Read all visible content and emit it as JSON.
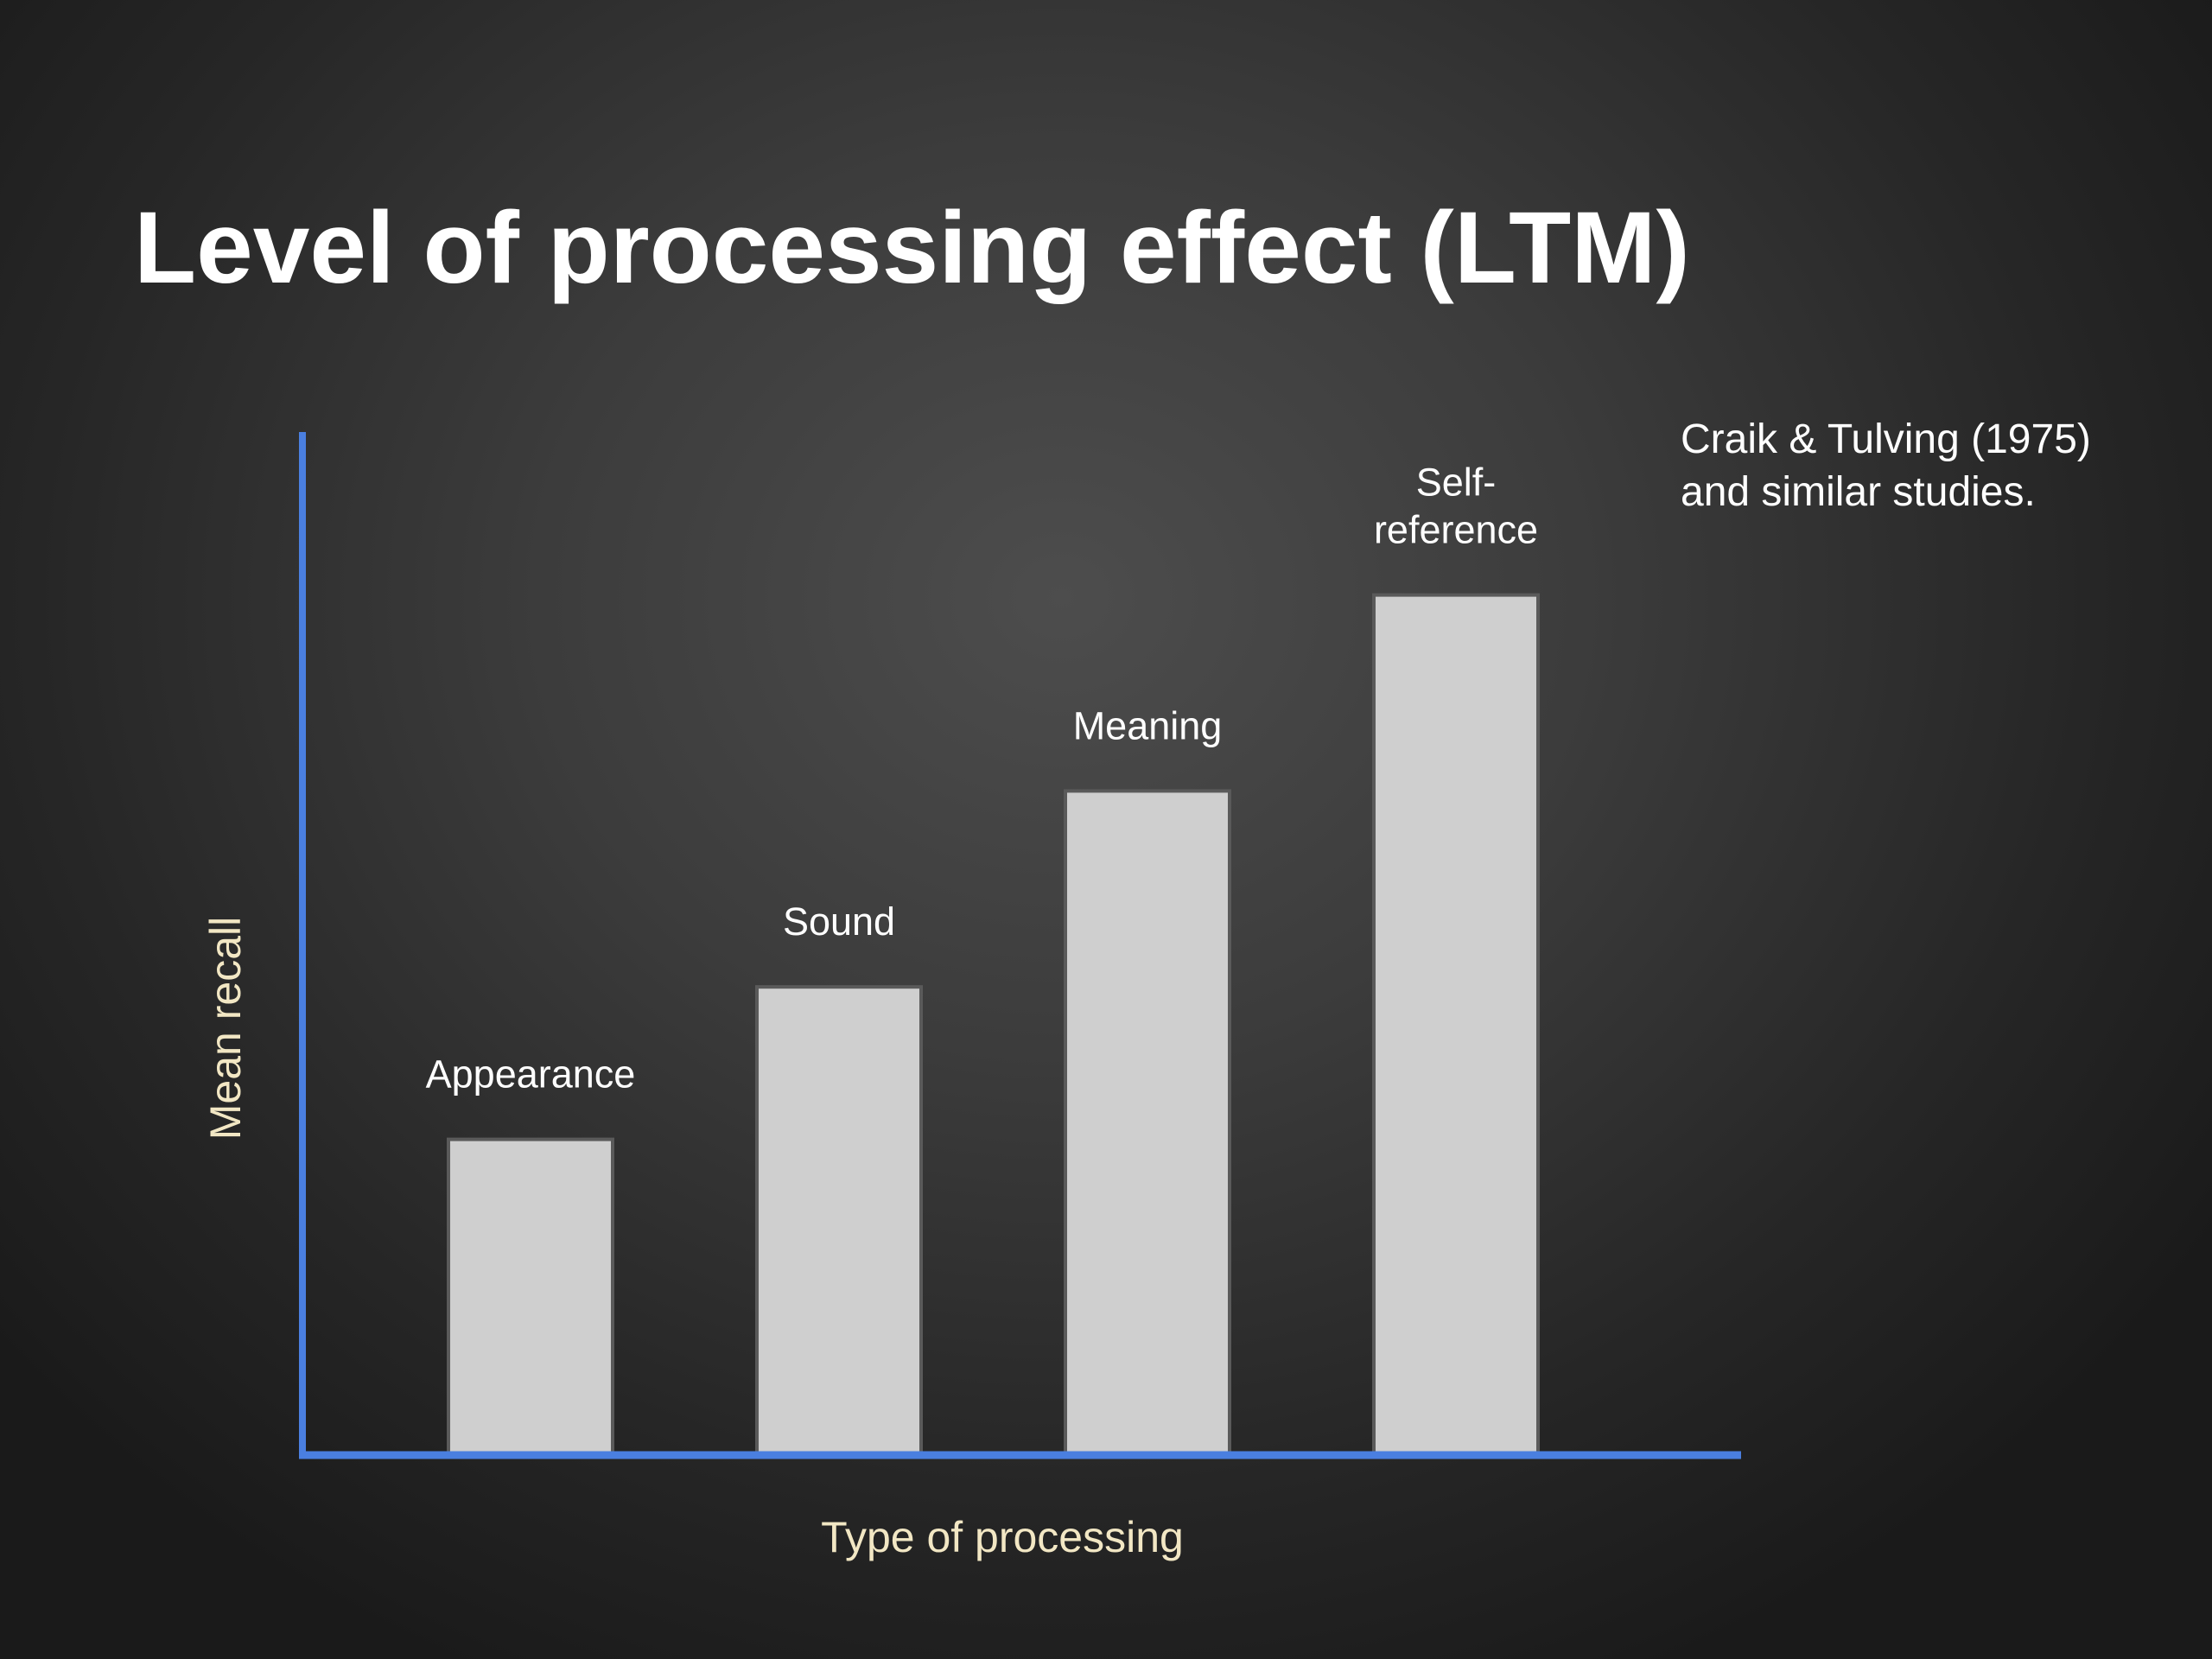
{
  "slide": {
    "title": "Level of processing effect (LTM)",
    "source_note": [
      "Craik & Tulving (1975)",
      "and similar studies."
    ]
  },
  "chart_data": {
    "type": "bar",
    "categories": [
      "Appearance",
      "Sound",
      "Meaning",
      "Self-reference"
    ],
    "category_labels_as_shown": [
      [
        "Appearance"
      ],
      [
        "Sound"
      ],
      [
        "Meaning"
      ],
      [
        "Self-",
        "reference"
      ]
    ],
    "values": [
      29,
      43,
      61,
      79
    ],
    "title": "",
    "xlabel": "Type of processing",
    "ylabel": "Mean recall",
    "ylim": [
      0,
      100
    ],
    "grid": false,
    "legend": "none",
    "y_tick_labels": false,
    "colors": {
      "bar_fill": "#cfcfcf",
      "bar_outline": "#5a5a5a",
      "axis": "#4a7fe0",
      "axis_title": "#f2e7c4",
      "bar_label": "#ffffff"
    }
  }
}
